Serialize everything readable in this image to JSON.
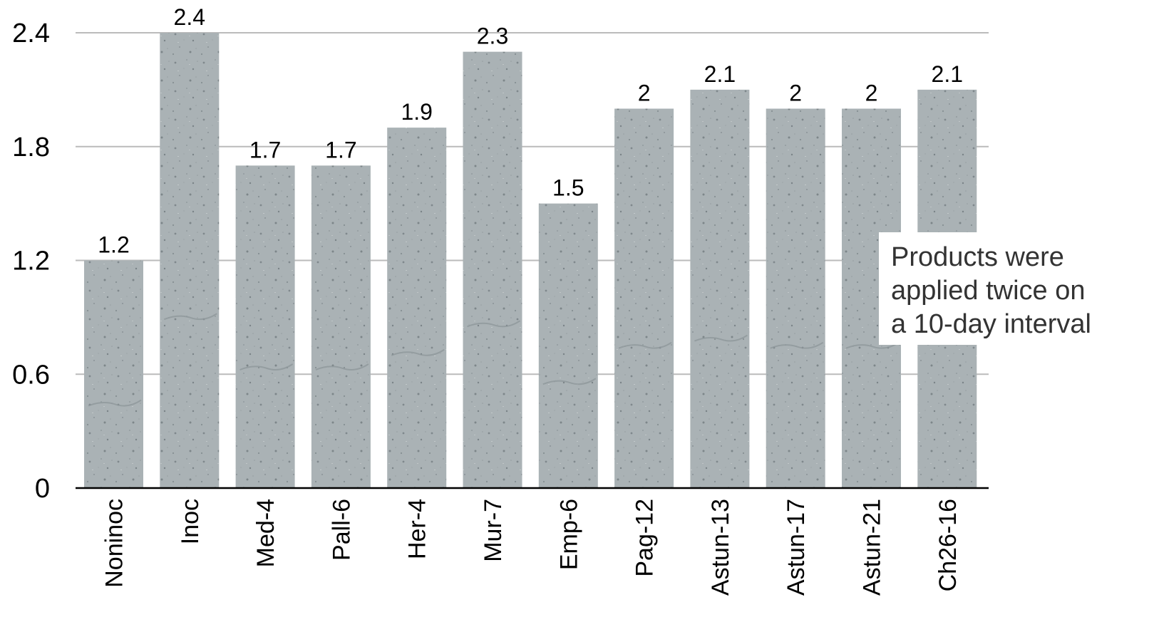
{
  "chart_data": {
    "type": "bar",
    "categories": [
      "Noninoc",
      "Inoc",
      "Med-4",
      "Pall-6",
      "Her-4",
      "Mur-7",
      "Emp-6",
      "Pag-12",
      "Astun-13",
      "Astun-17",
      "Astun-21",
      "Ch26-16"
    ],
    "values": [
      1.2,
      2.4,
      1.7,
      1.7,
      1.9,
      2.3,
      1.5,
      2,
      2.1,
      2,
      2,
      2.1
    ],
    "data_labels": [
      "1.2",
      "2.4",
      "1.7",
      "1.7",
      "1.9",
      "2.3",
      "1.5",
      "2",
      "2.1",
      "2",
      "2",
      "2.1"
    ],
    "ylim": [
      0,
      2.4
    ],
    "yticks": [
      0,
      0.6,
      1.2,
      1.8,
      2.4
    ],
    "ytick_labels": [
      "0",
      "0.6",
      "1.2",
      "1.8",
      "2.4"
    ],
    "grid": true,
    "annotation": {
      "lines": [
        "Products were",
        "applied twice on",
        "a 10-day interval"
      ]
    },
    "colors": {
      "bar": "#a9b1b4",
      "bar_texture": "#8e979b",
      "grid": "#bbbbbb",
      "axis": "#000000"
    }
  }
}
